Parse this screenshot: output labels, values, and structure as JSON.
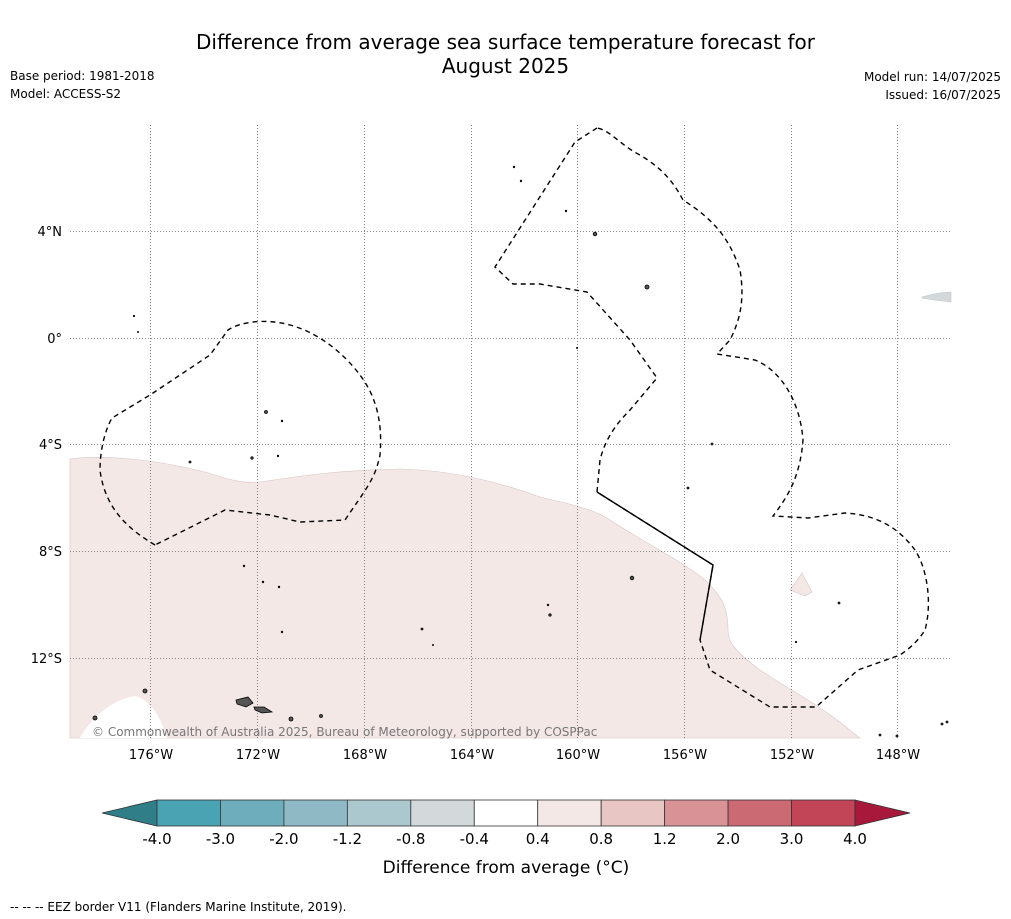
{
  "title_line1": "Difference from average sea surface temperature forecast for",
  "title_line2": "August 2025",
  "base_period": "Base period: 1981-2018",
  "model": "Model: ACCESS-S2",
  "model_run": "Model run: 14/07/2025",
  "issued": "Issued: 16/07/2025",
  "lat_labels": [
    "4°N",
    "0°",
    "4°S",
    "8°S",
    "12°S"
  ],
  "lon_labels": [
    "176°W",
    "172°W",
    "168°W",
    "164°W",
    "160°W",
    "156°W",
    "152°W",
    "148°W"
  ],
  "copyright": "© Commonwealth of Australia 2025, Bureau of Meteorology, supported by COSPPac",
  "colorbar": {
    "ticks": [
      "-4.0",
      "-3.0",
      "-2.0",
      "-1.2",
      "-0.8",
      "-0.4",
      "0.4",
      "0.8",
      "1.2",
      "2.0",
      "3.0",
      "4.0"
    ],
    "colors": [
      "#2f7e88",
      "#4aa3b3",
      "#6dadbc",
      "#8fb9c4",
      "#abc8ce",
      "#d3d9da",
      "#ffffff",
      "#f4e8e7",
      "#e8c6c3",
      "#d99296",
      "#cc6a74",
      "#c14557",
      "#a8183a"
    ],
    "title": "Difference from average (°C)"
  },
  "footer": "--  --  -- EEZ border V11 (Flanders Marine Institute, 2019)."
}
